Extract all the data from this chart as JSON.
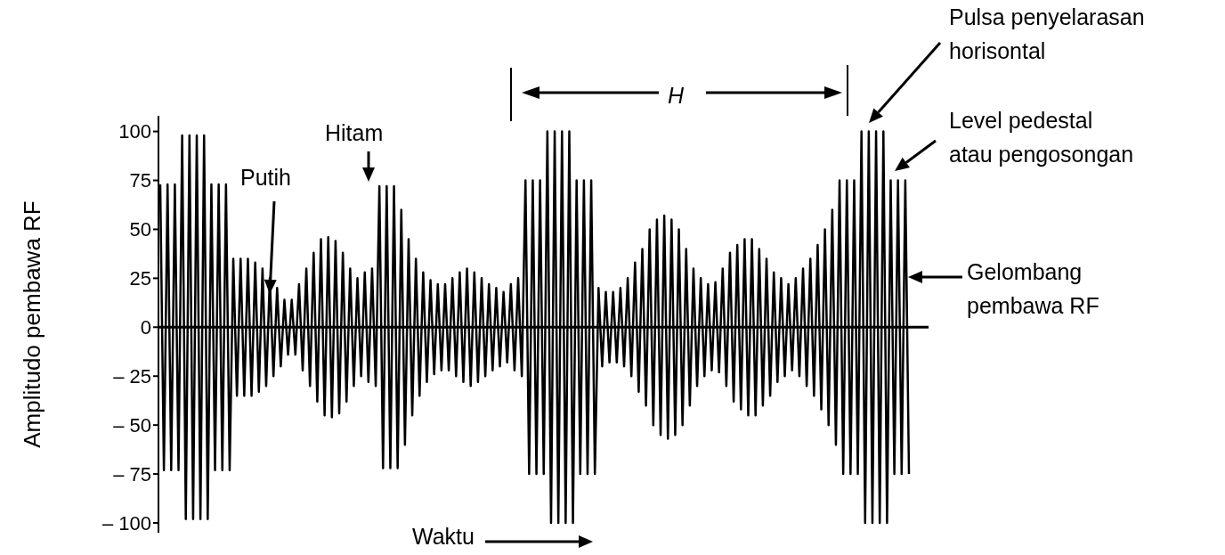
{
  "chart_data": {
    "type": "line",
    "xlabel": "Waktu",
    "ylabel": "Amplitudo pembawa RF",
    "categories": [
      null,
      null,
      null,
      null,
      null,
      null,
      null,
      null,
      null,
      null,
      null,
      null,
      null,
      null,
      null,
      null,
      null,
      null,
      null,
      null,
      null,
      null,
      null,
      null,
      null,
      null,
      null,
      null,
      null,
      null,
      null,
      null,
      null,
      null,
      null,
      null,
      null,
      null,
      null,
      null,
      null,
      null,
      null,
      null,
      null,
      null,
      null,
      null,
      null,
      null,
      null,
      null,
      null,
      null,
      null,
      null,
      null,
      null,
      null,
      null,
      null,
      null,
      null,
      null,
      null,
      null,
      null,
      null,
      null,
      null,
      null,
      null,
      null,
      null,
      null,
      null,
      null,
      null,
      null,
      null,
      null,
      null,
      null,
      null,
      null,
      null,
      null,
      null,
      null,
      null,
      null,
      null,
      null,
      null,
      null,
      null,
      null,
      null,
      null,
      null,
      null,
      null,
      null,
      null,
      null,
      null,
      null,
      null,
      null,
      null,
      null,
      null,
      null,
      null,
      null,
      null,
      null,
      null,
      null,
      null,
      null,
      null,
      null,
      null,
      null,
      null,
      null,
      null,
      null,
      null,
      null,
      null,
      null,
      null,
      null,
      null,
      null,
      null,
      null,
      null,
      null,
      null,
      null,
      null,
      null,
      null,
      null,
      null,
      null,
      null,
      null,
      null,
      null,
      null,
      null,
      null,
      null,
      null,
      null,
      null,
      null,
      null,
      null,
      null,
      null,
      null,
      null,
      null,
      null,
      null,
      null,
      null,
      null,
      null,
      null,
      null,
      null,
      null,
      null,
      null,
      null,
      null,
      null,
      null,
      null,
      null,
      null,
      null,
      null,
      null,
      null,
      null,
      null,
      null,
      null,
      null,
      null,
      null,
      null,
      null,
      null,
      null,
      null,
      null,
      null,
      null
    ],
    "values": [
      73,
      -73,
      73,
      -73,
      73,
      -73,
      98,
      -98,
      98,
      -98,
      98,
      -98,
      98,
      -98,
      73,
      -73,
      73,
      -73,
      73,
      -73,
      35,
      -35,
      35,
      -35,
      35,
      -35,
      33,
      -33,
      30,
      -30,
      25,
      -25,
      20,
      -20,
      14,
      -14,
      14,
      -14,
      22,
      -22,
      30,
      -30,
      38,
      -38,
      45,
      -45,
      46,
      -46,
      44,
      -44,
      38,
      -38,
      30,
      -30,
      25,
      -25,
      28,
      -28,
      30,
      -30,
      72,
      -72,
      72,
      -72,
      72,
      -72,
      60,
      -60,
      45,
      -45,
      35,
      -35,
      28,
      -28,
      24,
      -24,
      22,
      -22,
      22,
      -22,
      25,
      -25,
      28,
      -28,
      30,
      -30,
      28,
      -28,
      25,
      -25,
      22,
      -22,
      20,
      -20,
      18,
      -18,
      22,
      -22,
      25,
      -25,
      75,
      -75,
      75,
      -75,
      75,
      -75,
      100,
      -100,
      100,
      -100,
      100,
      -100,
      100,
      -100,
      75,
      -75,
      75,
      -75,
      75,
      -75,
      20,
      -20,
      18,
      -18,
      18,
      -18,
      20,
      -20,
      25,
      -25,
      33,
      -33,
      40,
      -40,
      50,
      -50,
      55,
      -55,
      57,
      -57,
      55,
      -55,
      50,
      -50,
      40,
      -40,
      30,
      -30,
      25,
      -25,
      22,
      -22,
      23,
      -23,
      30,
      -30,
      38,
      -38,
      42,
      -42,
      45,
      -45,
      45,
      -45,
      40,
      -40,
      35,
      -35,
      28,
      -28,
      25,
      -25,
      22,
      -22,
      25,
      -25,
      30,
      -30,
      35,
      -35,
      42,
      -42,
      50,
      -50,
      60,
      -60,
      75,
      -75,
      75,
      -75,
      75,
      -75,
      100,
      -100,
      100,
      -100,
      100,
      -100,
      100,
      -100,
      75,
      -75,
      75,
      -75,
      75,
      -75
    ],
    "color": "#000000",
    "marker": "none",
    "line_style": "solid",
    "tick_labels": "y",
    "ylim": [
      -105,
      108
    ],
    "yticks": [
      {
        "value": -100,
        "label": "– 100"
      },
      {
        "value": -75,
        "label": "– 75"
      },
      {
        "value": -50,
        "label": "– 50"
      },
      {
        "value": -25,
        "label": "– 25"
      },
      0,
      25,
      50,
      75,
      100
    ],
    "ref_lines": [
      {
        "axis": "y",
        "value": 0,
        "color": "#000000"
      }
    ],
    "annotations": [
      "Putih",
      "Hitam",
      "H",
      "Pulsa penyelarasan horisontal",
      "Level pedestal atau pengosongan",
      "Gelombang pembawa RF"
    ]
  }
}
